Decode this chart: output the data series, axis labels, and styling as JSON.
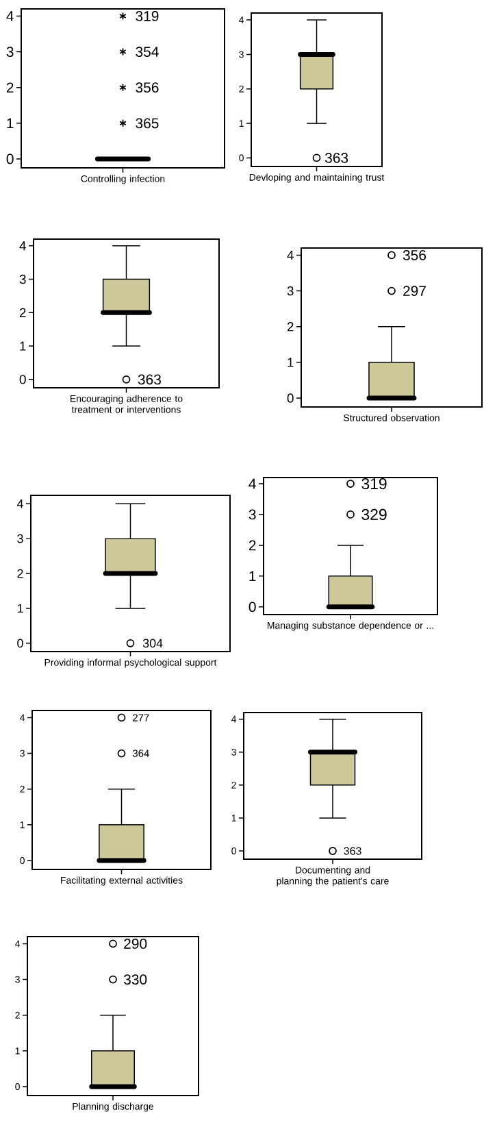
{
  "chart_data": [
    {
      "type": "box",
      "categories": [
        "Controlling infection"
      ],
      "boxes": [
        {
          "low": 0,
          "q1": 0,
          "median": 0,
          "q3": 0,
          "high": 0,
          "outliers": [
            4,
            3,
            2,
            1
          ]
        }
      ],
      "color": "#000000",
      "marker": "star",
      "ylim": [
        -0.25,
        4.2
      ],
      "yticks": [
        0,
        1,
        2,
        3,
        4
      ],
      "annotations": [
        "319",
        "354",
        "356",
        "365"
      ]
    },
    {
      "type": "box",
      "categories": [
        "Devloping and maintaining trust"
      ],
      "boxes": [
        {
          "low": 1,
          "q1": 2,
          "median": 3,
          "q3": 3,
          "high": 4,
          "outliers": [
            0
          ]
        }
      ],
      "color": "#cdc99a",
      "marker": "circle",
      "ylim": [
        -0.25,
        4.2
      ],
      "yticks": [
        0,
        1,
        2,
        3,
        4
      ],
      "annotations": [
        "363"
      ]
    },
    {
      "type": "box",
      "categories": [
        "Encouraging adherence to treatment or interventions"
      ],
      "boxes": [
        {
          "low": 1,
          "q1": 2,
          "median": 2,
          "q3": 3,
          "high": 4,
          "outliers": [
            0
          ]
        }
      ],
      "color": "#cdc99a",
      "marker": "circle",
      "ylim": [
        -0.25,
        4.2
      ],
      "yticks": [
        0,
        1,
        2,
        3,
        4
      ],
      "annotations": [
        "363"
      ]
    },
    {
      "type": "box",
      "categories": [
        "Structured observation"
      ],
      "boxes": [
        {
          "low": 0,
          "q1": 0,
          "median": 0,
          "q3": 1,
          "high": 2,
          "outliers": [
            4,
            3
          ]
        }
      ],
      "color": "#cdc99a",
      "marker": "circle",
      "ylim": [
        -0.25,
        4.2
      ],
      "yticks": [
        0,
        1,
        2,
        3,
        4
      ],
      "annotations": [
        "356",
        "297"
      ]
    },
    {
      "type": "box",
      "categories": [
        "Providing informal psychological support"
      ],
      "boxes": [
        {
          "low": 1,
          "q1": 2,
          "median": 2,
          "q3": 3,
          "high": 4,
          "outliers": [
            0
          ]
        }
      ],
      "color": "#cdc99a",
      "marker": "circle",
      "ylim": [
        -0.24,
        4.24
      ],
      "yticks": [
        0,
        1,
        2,
        3,
        4
      ],
      "annotations": [
        "304"
      ]
    },
    {
      "type": "box",
      "categories": [
        "Managing substance dependence or ..."
      ],
      "boxes": [
        {
          "low": 0,
          "q1": 0,
          "median": 0,
          "q3": 1,
          "high": 2,
          "outliers": [
            4,
            3
          ]
        }
      ],
      "color": "#cdc99a",
      "marker": "circle",
      "ylim": [
        -0.25,
        4.2
      ],
      "yticks": [
        0,
        1,
        2,
        3,
        4
      ],
      "annotations": [
        "319",
        "329"
      ]
    },
    {
      "type": "box",
      "categories": [
        "Facilitating external activities"
      ],
      "boxes": [
        {
          "low": 0,
          "q1": 0,
          "median": 0,
          "q3": 1,
          "high": 2,
          "outliers": [
            4,
            3
          ]
        }
      ],
      "color": "#cdc99a",
      "marker": "circle",
      "ylim": [
        -0.25,
        4.2
      ],
      "yticks": [
        0,
        1,
        2,
        3,
        4
      ],
      "annotations": [
        "277",
        "364"
      ]
    },
    {
      "type": "box",
      "categories": [
        "Documenting and planning the patient's care"
      ],
      "boxes": [
        {
          "low": 1,
          "q1": 2,
          "median": 3,
          "q3": 3,
          "high": 4,
          "outliers": [
            0
          ]
        }
      ],
      "color": "#cdc99a",
      "marker": "circle",
      "ylim": [
        -0.25,
        4.2
      ],
      "yticks": [
        0,
        1,
        2,
        3,
        4
      ],
      "annotations": [
        "363"
      ]
    },
    {
      "type": "box",
      "categories": [
        "Planning discharge"
      ],
      "boxes": [
        {
          "low": 0,
          "q1": 0,
          "median": 0,
          "q3": 1,
          "high": 2,
          "outliers": [
            4,
            3
          ]
        }
      ],
      "color": "#cdc99a",
      "marker": "circle",
      "ylim": [
        -0.25,
        4.2
      ],
      "yticks": [
        0,
        1,
        2,
        3,
        4
      ],
      "annotations": [
        "290",
        "330"
      ]
    }
  ]
}
